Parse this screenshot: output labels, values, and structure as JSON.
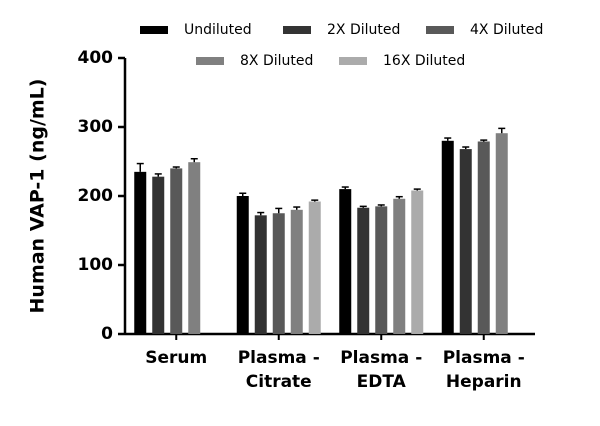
{
  "chart_data": {
    "type": "bar",
    "ylabel": "Human VAP-1 (ng/mL)",
    "categories": [
      [
        "Serum"
      ],
      [
        "Plasma -",
        "Citrate"
      ],
      [
        "Plasma -",
        "EDTA"
      ],
      [
        "Plasma -",
        "Heparin"
      ]
    ],
    "series": [
      {
        "name": "Undiluted",
        "color": "#000000",
        "values": [
          235,
          200,
          210,
          280
        ],
        "errors": [
          12,
          4,
          3,
          4
        ]
      },
      {
        "name": "2X Diluted",
        "color": "#333333",
        "values": [
          228,
          172,
          183,
          268
        ],
        "errors": [
          4,
          4,
          2,
          3
        ]
      },
      {
        "name": "4X Diluted",
        "color": "#595959",
        "values": [
          240,
          175,
          185,
          279
        ],
        "errors": [
          2,
          7,
          2,
          2
        ]
      },
      {
        "name": "8X Diluted",
        "color": "#808080",
        "values": [
          249,
          180,
          196,
          291
        ],
        "errors": [
          5,
          4,
          3,
          7
        ]
      },
      {
        "name": "16X Diluted",
        "color": "#ababab",
        "values": [
          null,
          192,
          208,
          null
        ],
        "errors": [
          null,
          2,
          2,
          null
        ]
      }
    ],
    "ylim": [
      0,
      400
    ],
    "yticks": [
      0,
      100,
      200,
      300,
      400
    ]
  }
}
